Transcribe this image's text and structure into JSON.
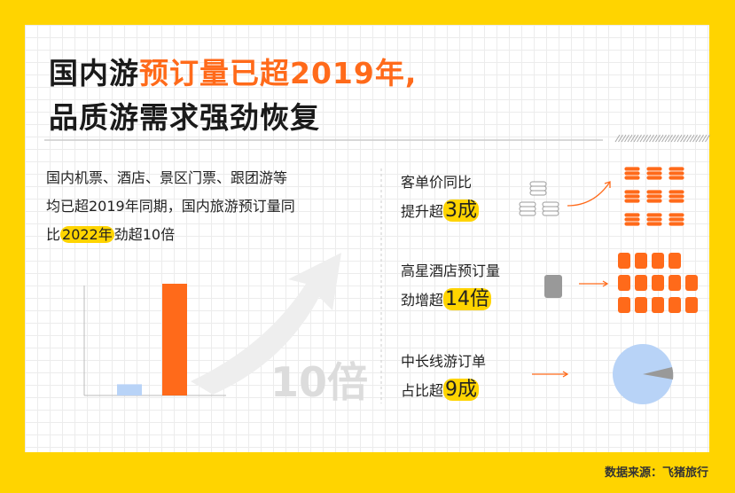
{
  "header": {
    "title_prefix": "国内游",
    "title_highlight": "预订量已超2019年,",
    "title_line2": "品质游需求强劲恢复"
  },
  "summary": {
    "lines": [
      "国内机票、酒店、景区门票、跟团游等",
      "均已超2019年同期，国内旅游预订量同"
    ],
    "line3_before": "比",
    "line3_highlight": "2022年",
    "line3_after": "劲超10倍"
  },
  "chart_data": {
    "type": "bar",
    "values": [
      1,
      10
    ],
    "colors": [
      "#b8d3f7",
      "#ff6a1a"
    ],
    "ylim": [
      0,
      10
    ],
    "annotation": "10倍"
  },
  "stats": [
    {
      "label": "客单价同比",
      "prefix": "提升超",
      "highlight": "3成"
    },
    {
      "label": "高星酒店预订量",
      "prefix": "劲增超",
      "highlight": "14倍"
    },
    {
      "label": "中长线游订单",
      "prefix": "占比超",
      "highlight": "9成"
    }
  ],
  "source": "数据来源：飞猪旅行"
}
